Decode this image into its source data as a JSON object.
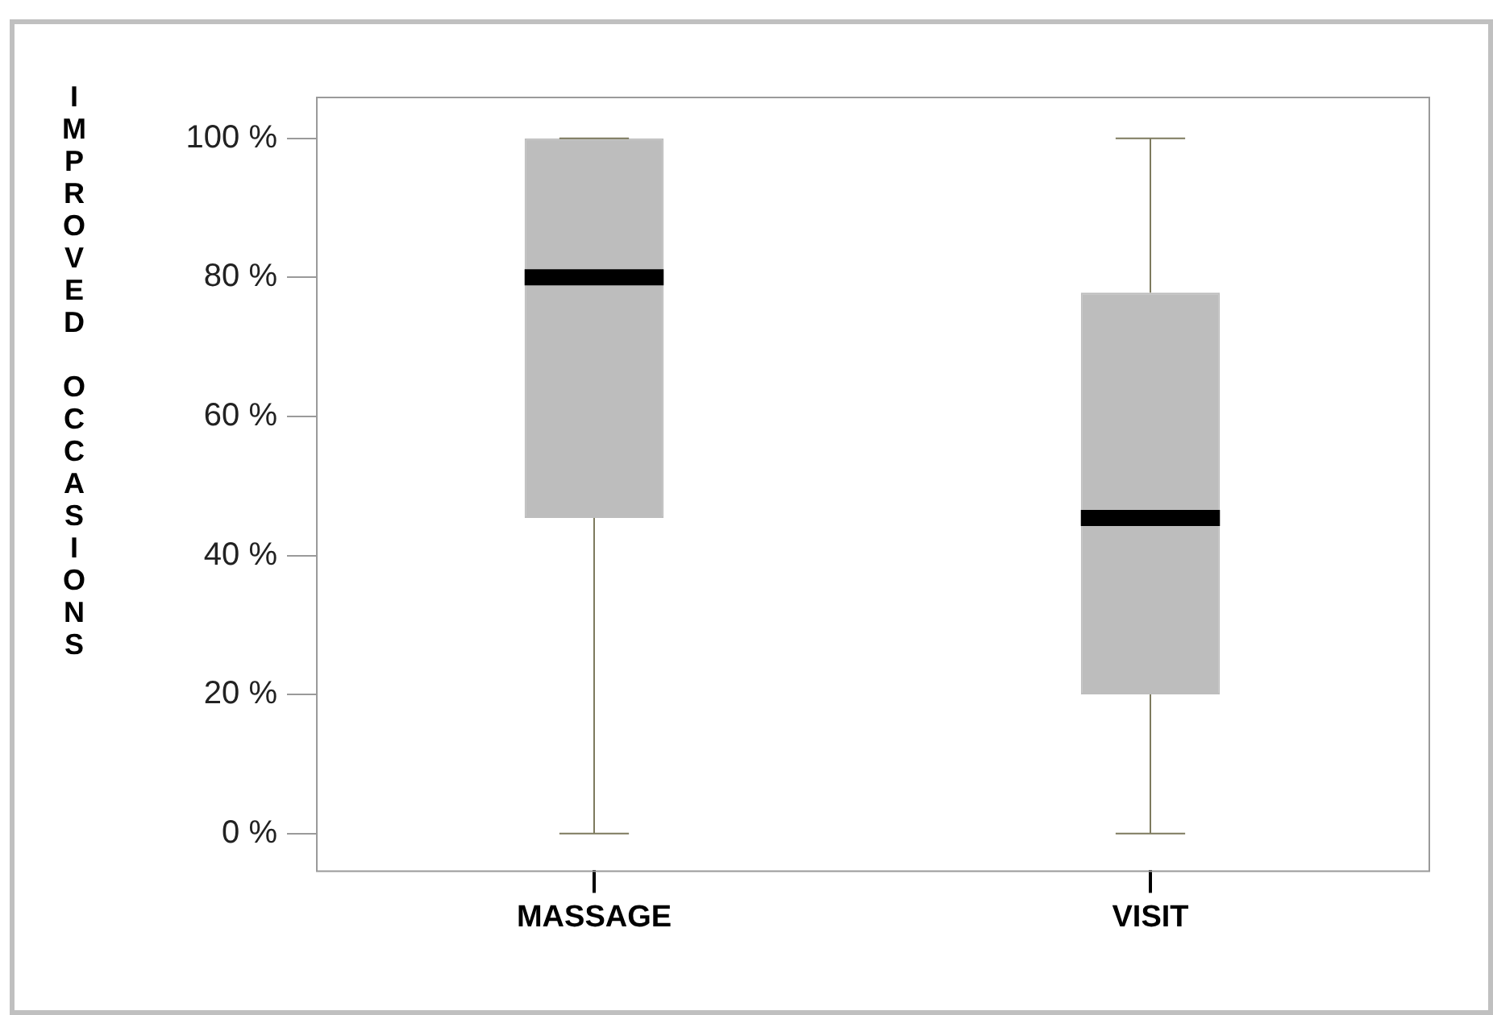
{
  "chart_data": {
    "type": "box",
    "ylabel": "IMPROVED OCCASIONS",
    "categories": [
      "MASSAGE",
      "VISIT"
    ],
    "series": [
      {
        "color": "#bdbdbd",
        "boxes": [
          {
            "low": 0,
            "q1": 45.4,
            "median": 80,
            "q3": 100,
            "high": 100
          },
          {
            "low": 0,
            "q1": 20,
            "median": 45.4,
            "q3": 77.8,
            "high": 100
          }
        ]
      }
    ],
    "ylim": [
      -5.3,
      106
    ],
    "yticks": [
      {
        "value": 0,
        "label": "0 %"
      },
      {
        "value": 20,
        "label": "20 %"
      },
      {
        "value": 40,
        "label": "40 %"
      },
      {
        "value": 60,
        "label": "60 %"
      },
      {
        "value": 80,
        "label": "80 %"
      },
      {
        "value": 100,
        "label": "100 %"
      }
    ],
    "grid": false,
    "legend": false
  }
}
